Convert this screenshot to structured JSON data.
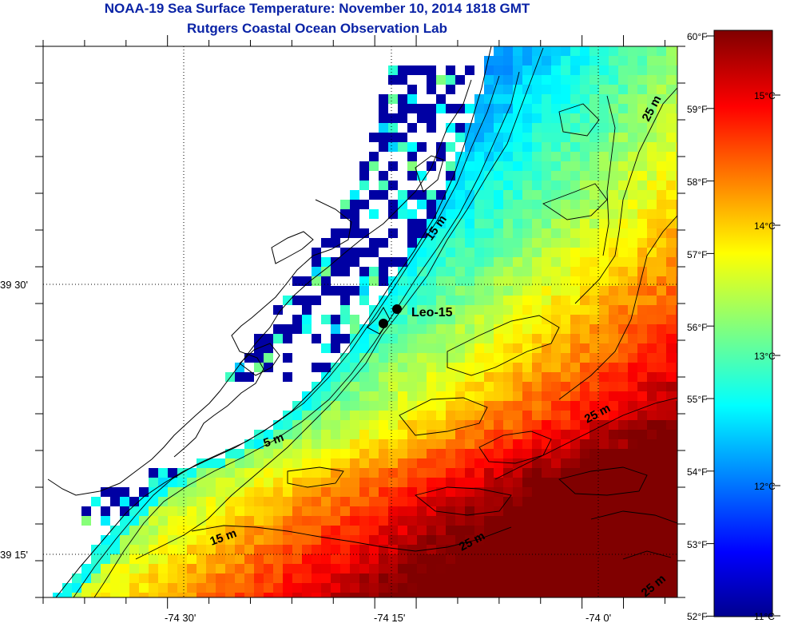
{
  "title": "NOAA-19 Sea Surface Temperature:  November 10, 2014 1818 GMT",
  "subtitle": "Rutgers Coastal Ocean Observation Lab",
  "station_label": "Leo-15",
  "map_data": {
    "lon_labels": [
      "-74 30'",
      "-74 15'",
      "-74 0'"
    ],
    "lat_labels": [
      "39 30'",
      "39 15'"
    ],
    "contour_labels": [
      "5 m",
      "15 m",
      "15 m",
      "25 m",
      "25 m",
      "25 m",
      "25 m"
    ],
    "sst_range_celsius": [
      11,
      15.6
    ]
  },
  "colorbar": {
    "fahrenheit": [
      "60°F",
      "59°F",
      "58°F",
      "57°F",
      "56°F",
      "55°F",
      "54°F",
      "53°F",
      "52°F"
    ],
    "celsius": [
      "15°C",
      "14°C",
      "13°C",
      "12°C",
      "11°C"
    ]
  }
}
